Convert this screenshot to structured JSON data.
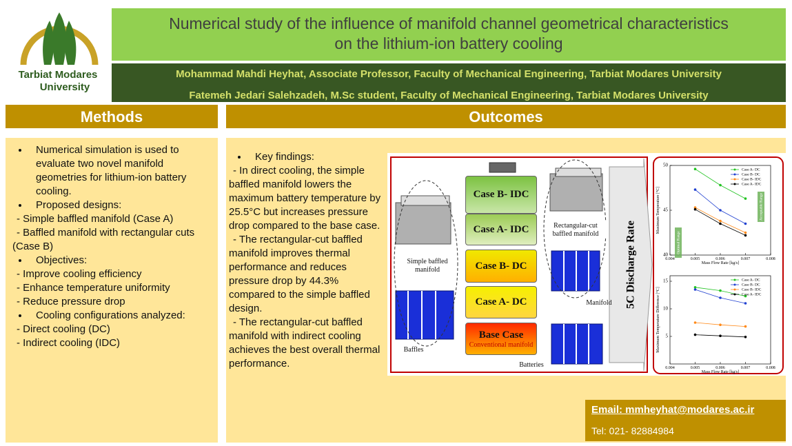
{
  "logo": {
    "line1": "Tarbiat Modares",
    "line2": "University"
  },
  "header": {
    "title_lines": [
      "Numerical study of the influence of manifold channel geometrical characteristics",
      "on the lithium-ion battery cooling"
    ],
    "authors": [
      "Mohammad Mahdi Heyhat, Associate Professor, Faculty of Mechanical Engineering, Tarbiat Modares University",
      "Fatemeh Jedari Salehzadeh, M.Sc student, Faculty of Mechanical Engineering, Tarbiat Modares University"
    ]
  },
  "methods": {
    "heading": "Methods",
    "items": [
      {
        "text": "Numerical simulation is used to evaluate two novel manifold geometries for lithium-ion battery cooling.",
        "sub": []
      },
      {
        "text": "Proposed designs:",
        "sub": [
          "- Simple baffled manifold (Case A)",
          "- Baffled manifold with rectangular cuts (Case B)"
        ]
      },
      {
        "text": "Objectives:",
        "sub": [
          "- Improve cooling efficiency",
          "- Enhance temperature uniformity",
          "- Reduce pressure drop"
        ]
      },
      {
        "text": "Cooling configurations analyzed:",
        "sub": [
          "- Direct cooling (DC)",
          "- Indirect cooling (IDC)"
        ]
      }
    ]
  },
  "outcomes": {
    "heading": "Outcomes",
    "items": [
      {
        "text": "Key findings:",
        "sub": [
          "- In direct cooling, the simple baffled manifold lowers the maximum battery temperature by 25.5°C but increases pressure drop compared to the base case.",
          "- The rectangular-cut baffled manifold improves thermal performance and reduces pressure drop by 44.3% compared to the simple baffled design.",
          "- The rectangular-cut baffled manifold with indirect cooling achieves the best overall thermal performance."
        ]
      }
    ]
  },
  "figure": {
    "cases": [
      "Case B- IDC",
      "Case A- IDC",
      "Case B- DC",
      "Case A- DC",
      "Base Case"
    ],
    "base_case_note": "Conventional manifold",
    "labels": {
      "simple": "Simple baffled manifold",
      "rect": "Rectangular-cut baffled manifold",
      "manifold": "Manifold",
      "baffles": "Baffles",
      "batteries": "Batteries"
    },
    "discharge": "5C Discharge Rate",
    "charts": [
      {
        "ylabel": "Maximum Temperature [°C]",
        "xlabel": "Mass Flow Rate [kg/s]",
        "x": [
          0.005,
          0.006,
          0.007
        ],
        "xlim": [
          0.004,
          0.008
        ],
        "xticks": [
          0.004,
          0.005,
          0.006,
          0.007,
          0.008
        ],
        "ylim": [
          40,
          50
        ],
        "yticks": [
          40,
          45,
          50
        ],
        "series": [
          {
            "name": "Case A- DC",
            "color": "#22c322",
            "values": [
              49.6,
              47.8,
              46.3
            ]
          },
          {
            "name": "Case B- DC",
            "color": "#2040d0",
            "values": [
              47.3,
              45.0,
              43.5
            ]
          },
          {
            "name": "Case B- IDC",
            "color": "#ff8a1a",
            "values": [
              45.3,
              43.8,
              42.5
            ]
          },
          {
            "name": "Case A- IDC",
            "color": "#000000",
            "values": [
              45.1,
              43.5,
              42.2
            ]
          }
        ],
        "annotations": [
          "Optimal Range",
          "Acceptable Range"
        ]
      },
      {
        "ylabel": "Maximum Temperature Difference [°C]",
        "xlabel": "Mass Flow Rate [kg/s]",
        "x": [
          0.005,
          0.006,
          0.007
        ],
        "xlim": [
          0.004,
          0.008
        ],
        "xticks": [
          0.004,
          0.005,
          0.006,
          0.007,
          0.008
        ],
        "ylim": [
          0,
          16
        ],
        "yticks": [
          5,
          10,
          15
        ],
        "series": [
          {
            "name": "Case A- DC",
            "color": "#22c322",
            "values": [
              13.9,
              13.3,
              12.3
            ]
          },
          {
            "name": "Case B- DC",
            "color": "#2040d0",
            "values": [
              13.5,
              12.0,
              11.0
            ]
          },
          {
            "name": "Case B- IDC",
            "color": "#ff8a1a",
            "values": [
              7.5,
              7.1,
              6.8
            ]
          },
          {
            "name": "Case A- IDC",
            "color": "#000000",
            "values": [
              5.3,
              5.1,
              4.9
            ]
          }
        ],
        "annotations": []
      }
    ]
  },
  "contact": {
    "email": "Email: mmheyhat@modares.ac.ir",
    "tel": "Tel: 021- 82884984"
  }
}
